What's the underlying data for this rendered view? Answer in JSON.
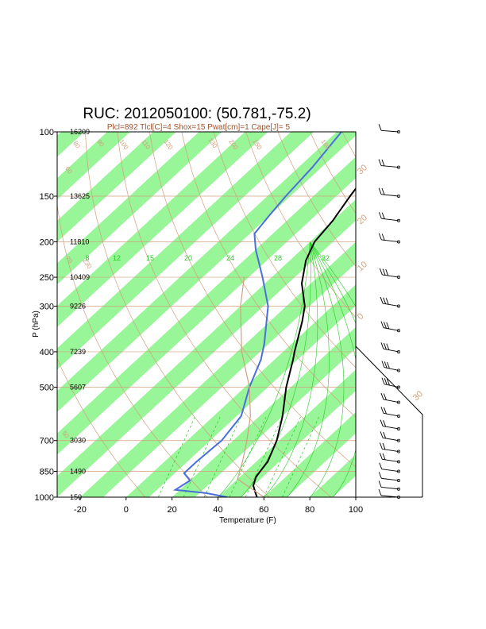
{
  "chart_data": {
    "type": "line",
    "chart_kind": "skew-t log-p sounding",
    "title": "RUC: 2012050100: (50.781,-75.2)",
    "subtitle": "Plcl=892 Tlcl[C]=4 Shox=15 Pwat[cm]=1 Cape[J]= 5",
    "xlabel": "Temperature (F)",
    "ylabel": "P (hPa)",
    "xlim": [
      -30,
      100
    ],
    "ylim": [
      1000,
      100
    ],
    "y_scale": "log",
    "x_ticks": [
      "-20",
      "0",
      "20",
      "40",
      "60",
      "80",
      "100"
    ],
    "pressure_ticks": [
      {
        "p": 100,
        "label": "100",
        "height": "16209"
      },
      {
        "p": 150,
        "label": "150",
        "height": "13625"
      },
      {
        "p": 200,
        "label": "200",
        "height": "11810"
      },
      {
        "p": 250,
        "label": "250",
        "height": "10409"
      },
      {
        "p": 300,
        "label": "300",
        "height": "9226"
      },
      {
        "p": 400,
        "label": "400",
        "height": "7239"
      },
      {
        "p": 500,
        "label": "500",
        "height": "5607"
      },
      {
        "p": 700,
        "label": "700",
        "height": "3030"
      },
      {
        "p": 850,
        "label": "850",
        "height": "1490"
      },
      {
        "p": 1000,
        "label": "1000",
        "height": "150"
      }
    ],
    "isotherm_labels": [
      "30",
      "20",
      "10",
      "0",
      "30"
    ],
    "mixing_ratio_labels": [
      "8",
      "12",
      "15",
      "20",
      "24",
      "28",
      "32"
    ],
    "adiabat_labels": [
      "80",
      "90",
      "100",
      "110",
      "120",
      "130",
      "150",
      "160",
      "60",
      "70",
      "50",
      "230",
      "200"
    ],
    "series": [
      {
        "name": "temperature",
        "color": "#000000",
        "points": [
          {
            "p": 1000,
            "t": 57
          },
          {
            "p": 970,
            "t": 54
          },
          {
            "p": 930,
            "t": 50
          },
          {
            "p": 880,
            "t": 47
          },
          {
            "p": 840,
            "t": 46
          },
          {
            "p": 800,
            "t": 45
          },
          {
            "p": 700,
            "t": 39
          },
          {
            "p": 600,
            "t": 30
          },
          {
            "p": 500,
            "t": 18
          },
          {
            "p": 420,
            "t": 8
          },
          {
            "p": 400,
            "t": 5
          },
          {
            "p": 330,
            "t": -6
          },
          {
            "p": 300,
            "t": -12
          },
          {
            "p": 260,
            "t": -24
          },
          {
            "p": 225,
            "t": -33
          },
          {
            "p": 200,
            "t": -38
          },
          {
            "p": 175,
            "t": -40
          },
          {
            "p": 150,
            "t": -44
          },
          {
            "p": 125,
            "t": -48
          },
          {
            "p": 100,
            "t": -54
          }
        ]
      },
      {
        "name": "dewpoint",
        "color": "#4a6fdc",
        "points": [
          {
            "p": 1000,
            "t": 44
          },
          {
            "p": 975,
            "t": 33
          },
          {
            "p": 955,
            "t": 18
          },
          {
            "p": 900,
            "t": 20
          },
          {
            "p": 860,
            "t": 14
          },
          {
            "p": 800,
            "t": 14
          },
          {
            "p": 700,
            "t": 15
          },
          {
            "p": 600,
            "t": 12
          },
          {
            "p": 500,
            "t": 2
          },
          {
            "p": 420,
            "t": -6
          },
          {
            "p": 380,
            "t": -12
          },
          {
            "p": 300,
            "t": -28
          },
          {
            "p": 250,
            "t": -44
          },
          {
            "p": 210,
            "t": -60
          },
          {
            "p": 190,
            "t": -68
          },
          {
            "p": 170,
            "t": -70
          },
          {
            "p": 150,
            "t": -72
          },
          {
            "p": 125,
            "t": -74
          },
          {
            "p": 100,
            "t": -78
          }
        ]
      },
      {
        "name": "parcel",
        "color": "#d2a07d",
        "points": [
          {
            "p": 1000,
            "t": 60
          },
          {
            "p": 892,
            "t": 40
          },
          {
            "p": 800,
            "t": 34
          },
          {
            "p": 700,
            "t": 26
          },
          {
            "p": 600,
            "t": 16
          },
          {
            "p": 500,
            "t": 2
          },
          {
            "p": 400,
            "t": -18
          },
          {
            "p": 300,
            "t": -40
          },
          {
            "p": 250,
            "t": -52
          }
        ]
      }
    ],
    "winds": [
      {
        "p": 1000,
        "speed": 10,
        "dir": 270
      },
      {
        "p": 950,
        "speed": 10,
        "dir": 275
      },
      {
        "p": 900,
        "speed": 10,
        "dir": 280
      },
      {
        "p": 850,
        "speed": 10,
        "dir": 285
      },
      {
        "p": 800,
        "speed": 15,
        "dir": 290
      },
      {
        "p": 750,
        "speed": 15,
        "dir": 290
      },
      {
        "p": 700,
        "speed": 15,
        "dir": 295
      },
      {
        "p": 650,
        "speed": 20,
        "dir": 295
      },
      {
        "p": 600,
        "speed": 20,
        "dir": 300
      },
      {
        "p": 550,
        "speed": 20,
        "dir": 300
      },
      {
        "p": 500,
        "speed": 25,
        "dir": 305
      },
      {
        "p": 450,
        "speed": 25,
        "dir": 305
      },
      {
        "p": 400,
        "speed": 25,
        "dir": 300
      },
      {
        "p": 350,
        "speed": 30,
        "dir": 300
      },
      {
        "p": 300,
        "speed": 30,
        "dir": 295
      },
      {
        "p": 250,
        "speed": 25,
        "dir": 290
      },
      {
        "p": 200,
        "speed": 20,
        "dir": 280
      },
      {
        "p": 175,
        "speed": 20,
        "dir": 280
      },
      {
        "p": 150,
        "speed": 20,
        "dir": 275
      },
      {
        "p": 125,
        "speed": 15,
        "dir": 270
      },
      {
        "p": 100,
        "speed": 10,
        "dir": 265
      }
    ]
  }
}
